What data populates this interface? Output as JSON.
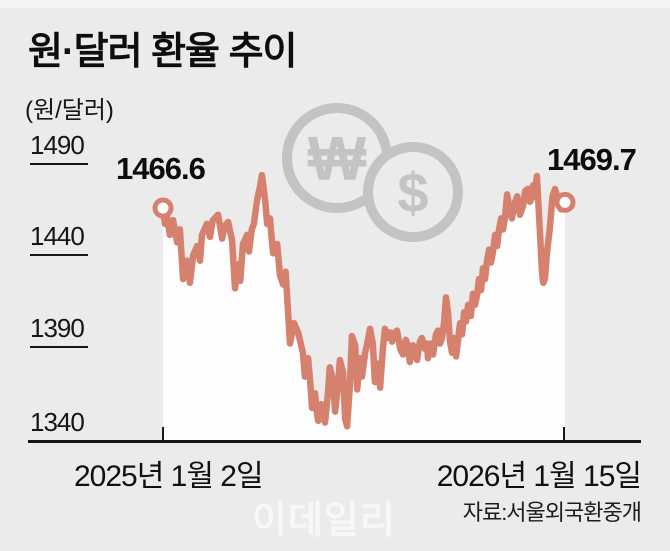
{
  "figure": {
    "title": "원·달러 환율 추이",
    "unit_label": "(원/달러)",
    "source": "자료:서울외국환중개",
    "watermark": "이데일리"
  },
  "chart_data": {
    "type": "line",
    "title": "원·달러 환율 추이",
    "ylabel": "원/달러",
    "y_ticks": [
      1490,
      1440,
      1390,
      1340
    ],
    "ylim": [
      1340,
      1490
    ],
    "grid": "off",
    "legend": "none",
    "x_axis": {
      "start_label": "2025년 1월 2일",
      "end_label": "2026년 1월 15일"
    },
    "annotations": {
      "start": {
        "label": "1466.6",
        "value": 1466.6,
        "x": 0
      },
      "end": {
        "label": "1469.7",
        "value": 1469.7,
        "x": 1
      }
    },
    "colors": {
      "line": "#d6806e",
      "area_fill": "#fdfdfd",
      "background": "#ebebeb",
      "icon_gray": "#c3c3c4",
      "axis": "#161616"
    },
    "icons": {
      "won_symbol": "₩",
      "dollar_symbol": "$"
    },
    "series": [
      {
        "name": "원·달러 환율",
        "points": [
          [
            0,
            1466.6
          ],
          [
            0.005,
            1458
          ],
          [
            0.01,
            1462
          ],
          [
            0.017,
            1452
          ],
          [
            0.025,
            1460
          ],
          [
            0.035,
            1448
          ],
          [
            0.042,
            1455
          ],
          [
            0.05,
            1428
          ],
          [
            0.06,
            1438
          ],
          [
            0.067,
            1426
          ],
          [
            0.075,
            1441
          ],
          [
            0.085,
            1446
          ],
          [
            0.092,
            1438
          ],
          [
            0.097,
            1452
          ],
          [
            0.109,
            1458
          ],
          [
            0.117,
            1451
          ],
          [
            0.124,
            1460
          ],
          [
            0.137,
            1463
          ],
          [
            0.147,
            1450
          ],
          [
            0.154,
            1457
          ],
          [
            0.162,
            1459
          ],
          [
            0.172,
            1449
          ],
          [
            0.179,
            1423
          ],
          [
            0.187,
            1436
          ],
          [
            0.192,
            1427
          ],
          [
            0.199,
            1447
          ],
          [
            0.209,
            1452
          ],
          [
            0.214,
            1443
          ],
          [
            0.221,
            1455
          ],
          [
            0.226,
            1458
          ],
          [
            0.234,
            1471
          ],
          [
            0.241,
            1478
          ],
          [
            0.246,
            1484.5
          ],
          [
            0.254,
            1471
          ],
          [
            0.259,
            1458
          ],
          [
            0.266,
            1461
          ],
          [
            0.274,
            1442
          ],
          [
            0.284,
            1447
          ],
          [
            0.291,
            1430
          ],
          [
            0.299,
            1425
          ],
          [
            0.305,
            1432
          ],
          [
            0.316,
            1393
          ],
          [
            0.326,
            1404
          ],
          [
            0.336,
            1399
          ],
          [
            0.348,
            1388
          ],
          [
            0.353,
            1375
          ],
          [
            0.361,
            1385
          ],
          [
            0.366,
            1373
          ],
          [
            0.371,
            1358
          ],
          [
            0.378,
            1366
          ],
          [
            0.383,
            1355
          ],
          [
            0.386,
            1351
          ],
          [
            0.393,
            1360
          ],
          [
            0.398,
            1356
          ],
          [
            0.403,
            1350
          ],
          [
            0.41,
            1365
          ],
          [
            0.415,
            1380
          ],
          [
            0.423,
            1373
          ],
          [
            0.428,
            1356
          ],
          [
            0.435,
            1370
          ],
          [
            0.44,
            1384
          ],
          [
            0.448,
            1377
          ],
          [
            0.453,
            1352
          ],
          [
            0.458,
            1348
          ],
          [
            0.465,
            1370
          ],
          [
            0.47,
            1397
          ],
          [
            0.478,
            1392
          ],
          [
            0.483,
            1368
          ],
          [
            0.49,
            1385
          ],
          [
            0.495,
            1375
          ],
          [
            0.503,
            1388
          ],
          [
            0.51,
            1395
          ],
          [
            0.515,
            1401
          ],
          [
            0.522,
            1393
          ],
          [
            0.527,
            1372
          ],
          [
            0.535,
            1382
          ],
          [
            0.54,
            1369
          ],
          [
            0.547,
            1390
          ],
          [
            0.552,
            1401
          ],
          [
            0.56,
            1396
          ],
          [
            0.565,
            1399
          ],
          [
            0.57,
            1394
          ],
          [
            0.577,
            1399
          ],
          [
            0.582,
            1400
          ],
          [
            0.59,
            1390
          ],
          [
            0.597,
            1387
          ],
          [
            0.604,
            1395
          ],
          [
            0.609,
            1392
          ],
          [
            0.614,
            1383
          ],
          [
            0.622,
            1392
          ],
          [
            0.627,
            1389
          ],
          [
            0.632,
            1384
          ],
          [
            0.639,
            1394
          ],
          [
            0.644,
            1396
          ],
          [
            0.652,
            1390
          ],
          [
            0.657,
            1393
          ],
          [
            0.659,
            1385
          ],
          [
            0.667,
            1393
          ],
          [
            0.672,
            1387
          ],
          [
            0.679,
            1398
          ],
          [
            0.684,
            1400
          ],
          [
            0.689,
            1393
          ],
          [
            0.694,
            1396
          ],
          [
            0.699,
            1404
          ],
          [
            0.704,
            1418
          ],
          [
            0.709,
            1410
          ],
          [
            0.714,
            1394
          ],
          [
            0.719,
            1388
          ],
          [
            0.724,
            1396
          ],
          [
            0.729,
            1386
          ],
          [
            0.734,
            1395
          ],
          [
            0.739,
            1404
          ],
          [
            0.744,
            1398
          ],
          [
            0.749,
            1410
          ],
          [
            0.754,
            1405
          ],
          [
            0.759,
            1414
          ],
          [
            0.766,
            1408
          ],
          [
            0.771,
            1420
          ],
          [
            0.776,
            1414
          ],
          [
            0.781,
            1419
          ],
          [
            0.786,
            1428
          ],
          [
            0.791,
            1422
          ],
          [
            0.796,
            1434
          ],
          [
            0.801,
            1428
          ],
          [
            0.806,
            1438
          ],
          [
            0.811,
            1444
          ],
          [
            0.816,
            1437
          ],
          [
            0.821,
            1443
          ],
          [
            0.826,
            1452
          ],
          [
            0.831,
            1446
          ],
          [
            0.836,
            1455
          ],
          [
            0.841,
            1461
          ],
          [
            0.846,
            1455
          ],
          [
            0.851,
            1462
          ],
          [
            0.856,
            1474
          ],
          [
            0.863,
            1465
          ],
          [
            0.868,
            1461
          ],
          [
            0.876,
            1470
          ],
          [
            0.881,
            1473
          ],
          [
            0.888,
            1463
          ],
          [
            0.896,
            1468
          ],
          [
            0.901,
            1476
          ],
          [
            0.908,
            1477
          ],
          [
            0.913,
            1470
          ],
          [
            0.918,
            1472
          ],
          [
            0.921,
            1479
          ],
          [
            0.925,
            1475
          ],
          [
            0.93,
            1484
          ],
          [
            0.938,
            1452
          ],
          [
            0.943,
            1431
          ],
          [
            0.946,
            1426
          ],
          [
            0.95,
            1428
          ],
          [
            0.955,
            1442
          ],
          [
            0.962,
            1455
          ],
          [
            0.969,
            1473
          ],
          [
            0.975,
            1477
          ],
          [
            0.983,
            1471
          ],
          [
            0.99,
            1466
          ],
          [
            0.995,
            1472
          ],
          [
            1,
            1469.7
          ]
        ]
      }
    ]
  }
}
